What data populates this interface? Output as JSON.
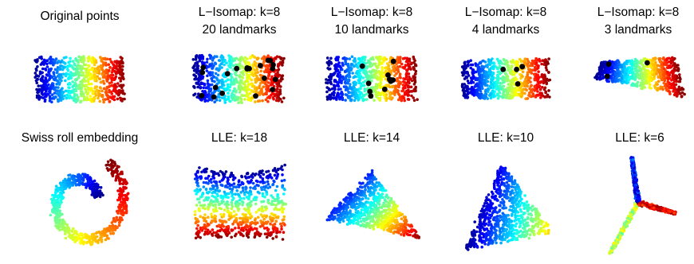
{
  "colormap": [
    "#00008f",
    "#0000ff",
    "#0080ff",
    "#00ffff",
    "#80ff80",
    "#ffff00",
    "#ff8000",
    "#ff0000",
    "#800000"
  ],
  "landmark_color": "#000000",
  "chart_data": [
    {
      "type": "scatter",
      "title": "Original points",
      "grid": false
    },
    {
      "type": "scatter",
      "title": "L−Isomap: k=8",
      "subtitle": "20 landmarks",
      "landmarks": 20,
      "grid": false
    },
    {
      "type": "scatter",
      "title": "L−Isomap: k=8",
      "subtitle": "10 landmarks",
      "landmarks": 10,
      "grid": false
    },
    {
      "type": "scatter",
      "title": "L−Isomap: k=8",
      "subtitle": "4 landmarks",
      "landmarks": 4,
      "grid": false
    },
    {
      "type": "scatter",
      "title": "L−Isomap: k=8",
      "subtitle": "3 landmarks",
      "landmarks": 3,
      "grid": false
    },
    {
      "type": "scatter",
      "title": "Swiss roll embedding",
      "grid": false
    },
    {
      "type": "scatter",
      "title": "LLE: k=18",
      "grid": false
    },
    {
      "type": "scatter",
      "title": "LLE: k=14",
      "grid": false
    },
    {
      "type": "scatter",
      "title": "LLE: k=10",
      "grid": false
    },
    {
      "type": "scatter",
      "title": "LLE: k=6",
      "grid": false
    }
  ]
}
